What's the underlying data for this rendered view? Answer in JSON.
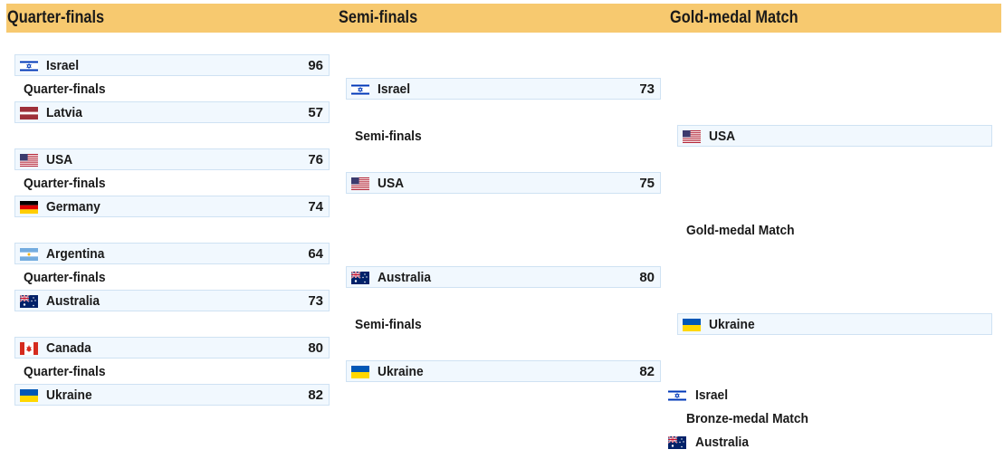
{
  "headers": {
    "quarterfinals": "Quarter-finals",
    "semifinals": "Semi-finals",
    "final": "Gold-medal Match"
  },
  "quarterfinals": [
    {
      "label": "Quarter-finals",
      "top": {
        "team": "Israel",
        "flag": "israel-flag-icon",
        "score": "96"
      },
      "bottom": {
        "team": "Latvia",
        "flag": "latvia-flag-icon",
        "score": "57"
      }
    },
    {
      "label": "Quarter-finals",
      "top": {
        "team": "USA",
        "flag": "usa-flag-icon",
        "score": "76"
      },
      "bottom": {
        "team": "Germany",
        "flag": "germany-flag-icon",
        "score": "74"
      }
    },
    {
      "label": "Quarter-finals",
      "top": {
        "team": "Argentina",
        "flag": "argentina-flag-icon",
        "score": "64"
      },
      "bottom": {
        "team": "Australia",
        "flag": "australia-flag-icon",
        "score": "73"
      }
    },
    {
      "label": "Quarter-finals",
      "top": {
        "team": "Canada",
        "flag": "canada-flag-icon",
        "score": "80"
      },
      "bottom": {
        "team": "Ukraine",
        "flag": "ukraine-flag-icon",
        "score": "82"
      }
    }
  ],
  "semifinals": [
    {
      "label": "Semi-finals",
      "top": {
        "team": "Israel",
        "flag": "israel-flag-icon",
        "score": "73"
      },
      "bottom": {
        "team": "USA",
        "flag": "usa-flag-icon",
        "score": "75"
      }
    },
    {
      "label": "Semi-finals",
      "top": {
        "team": "Australia",
        "flag": "australia-flag-icon",
        "score": "80"
      },
      "bottom": {
        "team": "Ukraine",
        "flag": "ukraine-flag-icon",
        "score": "82"
      }
    }
  ],
  "final": {
    "label": "Gold-medal Match",
    "top": {
      "team": "USA",
      "flag": "usa-flag-icon"
    },
    "bottom": {
      "team": "Ukraine",
      "flag": "ukraine-flag-icon"
    }
  },
  "bronze": {
    "label": "Bronze-medal Match",
    "top": {
      "team": "Israel",
      "flag": "israel-flag-icon"
    },
    "bottom": {
      "team": "Australia",
      "flag": "australia-flag-icon"
    }
  },
  "colors": {
    "header_background": "#f7c96f",
    "cell_background": "#f1f8fe",
    "cell_border": "#cfe2f3"
  }
}
